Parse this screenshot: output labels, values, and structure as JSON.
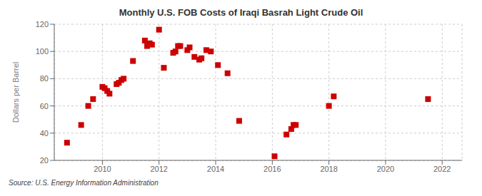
{
  "chart_data": {
    "type": "scatter",
    "title": "Monthly U.S. FOB Costs of Iraqi Basrah Light Crude Oil",
    "ylabel": "Dollars per Barrel",
    "annotations": [
      "Source: U.S. Energy Information Administration"
    ],
    "x": [
      2008.75,
      2009.25,
      2009.5,
      2009.67,
      2010.0,
      2010.08,
      2010.17,
      2010.25,
      2010.5,
      2010.58,
      2010.67,
      2010.75,
      2011.08,
      2011.5,
      2011.58,
      2011.67,
      2011.75,
      2012.0,
      2012.17,
      2012.5,
      2012.58,
      2012.67,
      2012.75,
      2013.0,
      2013.08,
      2013.25,
      2013.42,
      2013.5,
      2013.67,
      2013.83,
      2014.08,
      2014.42,
      2014.83,
      2016.08,
      2016.5,
      2016.67,
      2016.75,
      2016.83,
      2018.0,
      2018.17,
      2021.5
    ],
    "values": [
      33,
      46,
      60,
      65,
      74,
      73,
      71,
      69,
      76,
      77,
      79,
      80,
      93,
      108,
      104,
      106,
      105,
      116,
      88,
      99,
      100,
      104,
      104,
      101,
      103,
      96,
      94,
      95,
      101,
      100,
      90,
      84,
      49,
      23,
      39,
      43,
      46,
      46,
      60,
      67,
      65
    ],
    "color": "#cc0000",
    "marker": "square",
    "xlim": [
      2008.3,
      2022.7
    ],
    "ylim": [
      20,
      120
    ],
    "xticks": [
      2010,
      2012,
      2014,
      2016,
      2018,
      2020,
      2022
    ],
    "yticks": [
      20,
      40,
      60,
      80,
      100,
      120
    ],
    "grid": true
  }
}
